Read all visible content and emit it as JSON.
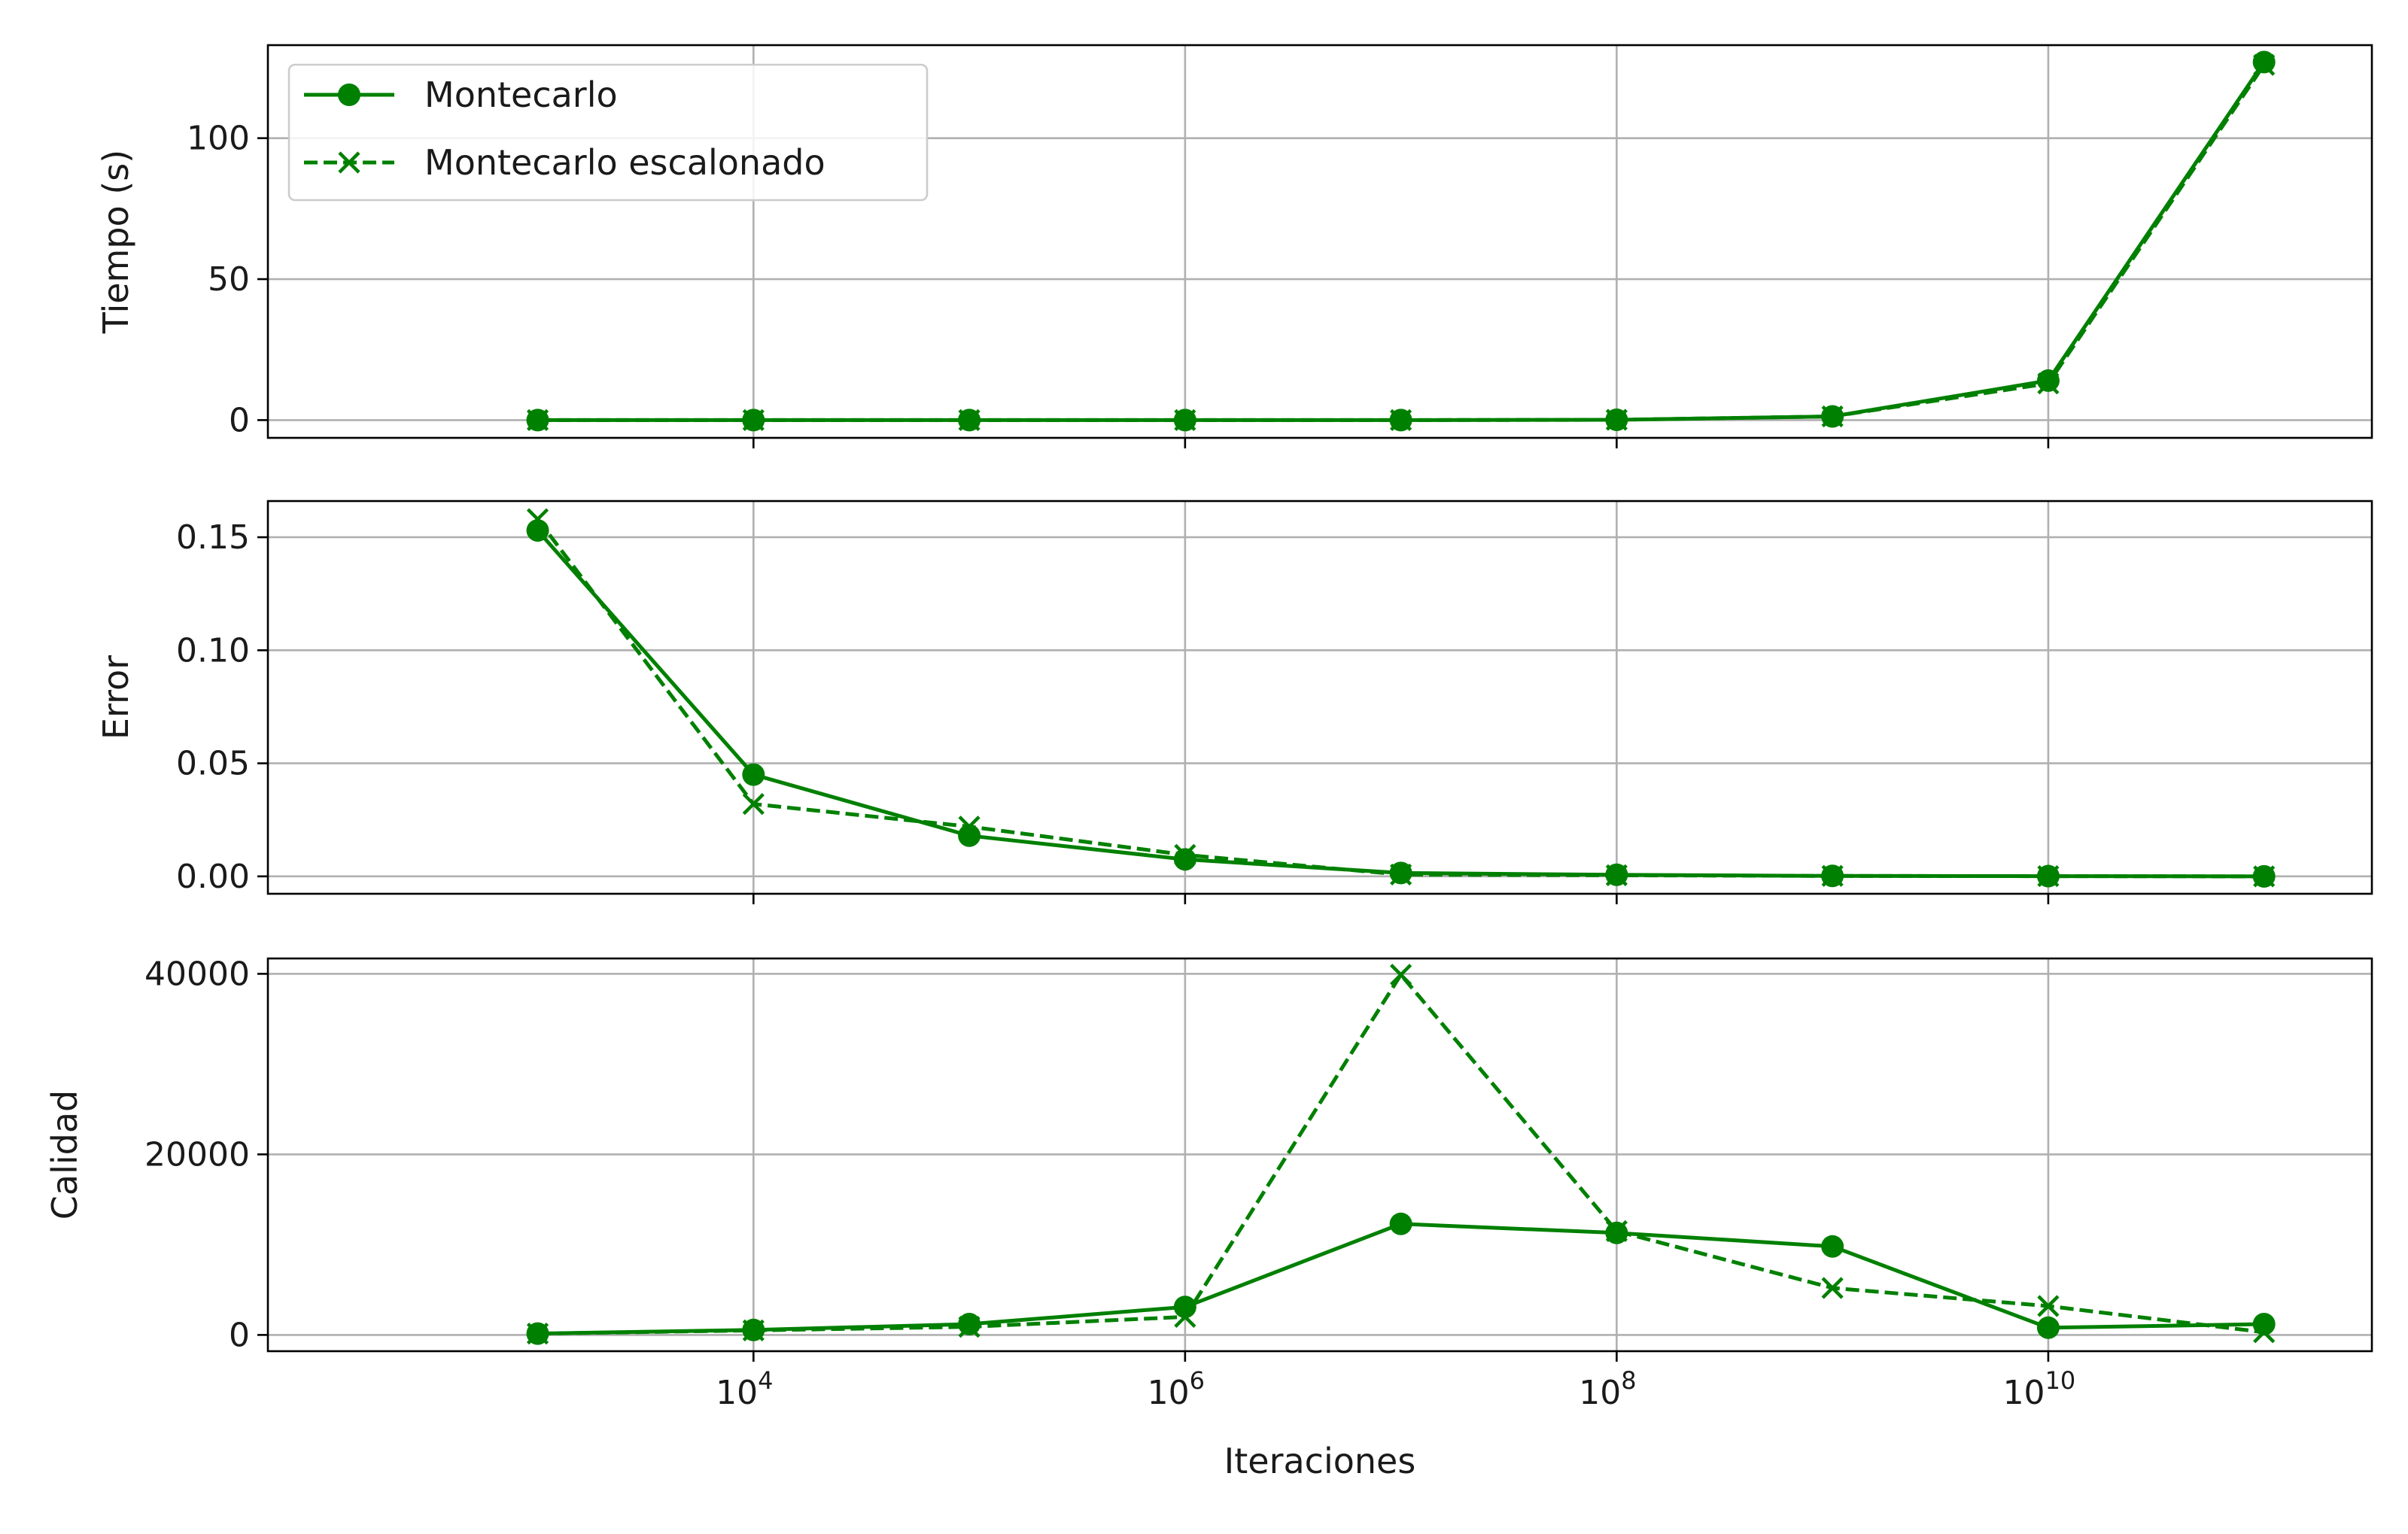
{
  "chart_data": {
    "type": "line",
    "x_scale": "log",
    "x": [
      1000,
      10000,
      100000,
      1000000,
      10000000,
      100000000,
      1000000000,
      10000000000,
      100000000000
    ],
    "xlabel": "Iteraciones",
    "xlim": [
      56.2,
      316000000000
    ],
    "x_ticks": [
      {
        "value": 10000,
        "base": "10",
        "exp": "4"
      },
      {
        "value": 1000000,
        "base": "10",
        "exp": "6"
      },
      {
        "value": 100000000,
        "base": "10",
        "exp": "8"
      },
      {
        "value": 10000000000,
        "base": "10",
        "exp": "10"
      }
    ],
    "grid": true,
    "color": "#008000",
    "legend": {
      "placement": "top-left",
      "entries": [
        "Montecarlo",
        "Montecarlo escalonado"
      ]
    },
    "subplots": [
      {
        "ylabel": "Tiempo (s)",
        "ylim": [
          -6.3,
          133
        ],
        "yticks": [
          0,
          50,
          100
        ],
        "ytick_labels": [
          "0",
          "50",
          "100"
        ],
        "series": [
          {
            "name": "Montecarlo",
            "style": "solid",
            "marker": "circle",
            "values": [
              0.0,
              0.0,
              0.0,
              0.0,
              0.01,
              0.1,
              1.3,
              14.0,
              127.0
            ]
          },
          {
            "name": "Montecarlo escalonado",
            "style": "dashed",
            "marker": "x",
            "values": [
              0.0,
              0.0,
              0.0,
              0.0,
              0.01,
              0.1,
              1.3,
              13.0,
              126.0
            ]
          }
        ]
      },
      {
        "ylabel": "Error",
        "ylim": [
          -0.0077,
          0.166
        ],
        "yticks": [
          0.0,
          0.05,
          0.1,
          0.15
        ],
        "ytick_labels": [
          "0.00",
          "0.05",
          "0.10",
          "0.15"
        ],
        "series": [
          {
            "name": "Montecarlo",
            "style": "solid",
            "marker": "circle",
            "values": [
              0.153,
              0.045,
              0.018,
              0.0075,
              0.0015,
              0.0007,
              0.0002,
              0.0001,
              0.0
            ]
          },
          {
            "name": "Montecarlo escalonado",
            "style": "dashed",
            "marker": "x",
            "values": [
              0.158,
              0.032,
              0.022,
              0.0095,
              0.0008,
              0.0005,
              0.0002,
              0.0001,
              0.0
            ]
          }
        ]
      },
      {
        "ylabel": "Calidad",
        "ylim": [
          -1800,
          41700
        ],
        "yticks": [
          0,
          20000,
          40000
        ],
        "ytick_labels": [
          "0",
          "20000",
          "40000"
        ],
        "series": [
          {
            "name": "Montecarlo",
            "style": "solid",
            "marker": "circle",
            "values": [
              150,
              550,
              1200,
              3100,
              12300,
              11300,
              9800,
              800,
              1200
            ]
          },
          {
            "name": "Montecarlo escalonado",
            "style": "dashed",
            "marker": "x",
            "values": [
              150,
              500,
              900,
              2000,
              39900,
              11500,
              5200,
              3200,
              300
            ]
          }
        ]
      }
    ]
  }
}
